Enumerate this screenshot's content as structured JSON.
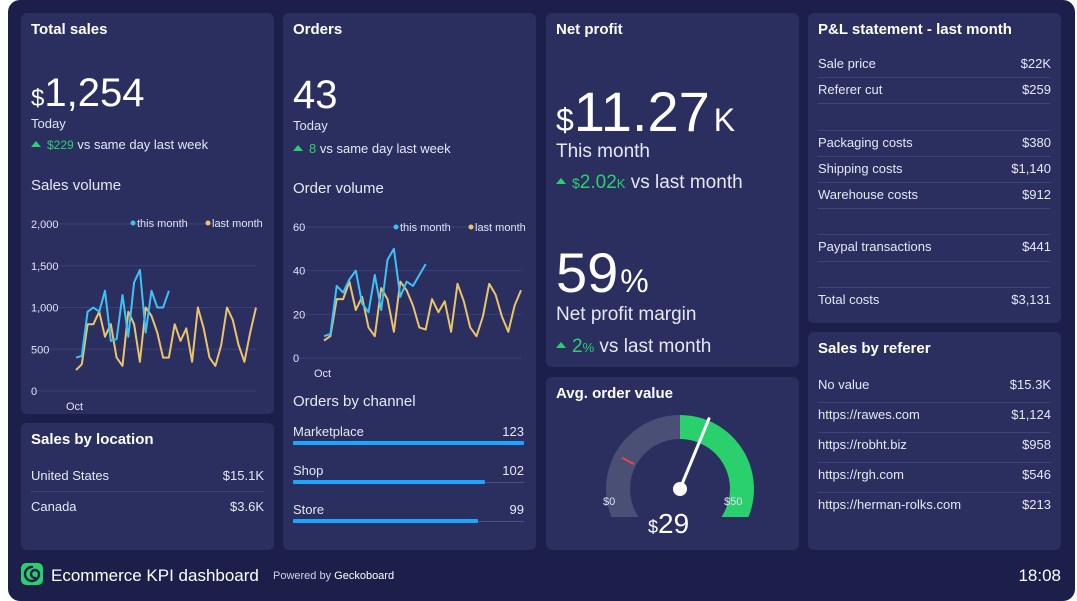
{
  "total_sales": {
    "title": "Total sales",
    "currency": "$",
    "value": "1,254",
    "period": "Today",
    "delta": "$229",
    "delta_text": "vs same day last week",
    "chart_title": "Sales volume"
  },
  "orders": {
    "title": "Orders",
    "value": "43",
    "period": "Today",
    "delta": "8",
    "delta_text": "vs same day last week",
    "chart_title": "Order volume",
    "channel_title": "Orders by channel",
    "channels": [
      {
        "label": "Marketplace",
        "value": "123",
        "fraction": 1.0
      },
      {
        "label": "Shop",
        "value": "102",
        "fraction": 0.83
      },
      {
        "label": "Store",
        "value": "99",
        "fraction": 0.8
      }
    ]
  },
  "net_profit": {
    "title": "Net profit",
    "currency": "$",
    "value": "11.27",
    "suffix": "K",
    "period": "This month",
    "delta_currency": "$",
    "delta": "2.02",
    "delta_suffix": "K",
    "delta_text": "vs last month",
    "margin_value": "59",
    "margin_unit": "%",
    "margin_label": "Net profit margin",
    "margin_delta": "2",
    "margin_delta_unit": "%",
    "margin_delta_text": "vs last month"
  },
  "avg_order": {
    "title": "Avg. order value",
    "currency": "$",
    "value": "29",
    "min_label": "$0",
    "max_label": "$50",
    "gauge_value": 29,
    "gauge_min": 0,
    "gauge_max": 50,
    "gauge_target": 14,
    "green_from": 25
  },
  "pl_statement": {
    "title": "P&L statement - last month",
    "rows": [
      {
        "label": "Sale price",
        "value": "$22K"
      },
      {
        "label": "Referer cut",
        "value": "$259"
      },
      {
        "label": "",
        "value": ""
      },
      {
        "label": "Packaging costs",
        "value": "$380"
      },
      {
        "label": "Shipping costs",
        "value": "$1,140"
      },
      {
        "label": "Warehouse costs",
        "value": "$912"
      },
      {
        "label": "",
        "value": ""
      },
      {
        "label": "Paypal transactions",
        "value": "$441"
      },
      {
        "label": "",
        "value": ""
      },
      {
        "label": "Total costs",
        "value": "$3,131"
      }
    ]
  },
  "sales_by_referer": {
    "title": "Sales by referer",
    "rows": [
      {
        "label": "No value",
        "value": "$15.3K"
      },
      {
        "label": "https://rawes.com",
        "value": "$1,124"
      },
      {
        "label": "https://robht.biz",
        "value": "$958"
      },
      {
        "label": "https://rgh.com",
        "value": "$546"
      },
      {
        "label": "https://herman-rolks.com",
        "value": "$213"
      }
    ]
  },
  "sales_by_location": {
    "title": "Sales by location",
    "rows": [
      {
        "label": "United States",
        "value": "$15.1K"
      },
      {
        "label": "Canada",
        "value": "$3.6K"
      }
    ]
  },
  "footer": {
    "title": "Ecommerce KPI dashboard",
    "powered_prefix": "Powered by",
    "powered_brand": "Geckoboard",
    "time": "18:08"
  },
  "colors": {
    "this_month": "#3ec2f5",
    "last_month": "#e9c46a",
    "bar": "#1aa7ff",
    "positive": "#2ad06b",
    "gauge_red": "#e0464e"
  },
  "chart_data": [
    {
      "type": "line",
      "title": "Sales volume",
      "x_tick_labels": [
        "Oct"
      ],
      "y_ticks": [
        "2,000",
        "1,500",
        "1,000",
        "500",
        "0"
      ],
      "ylim": [
        0,
        2000
      ],
      "legend_placement": "top-right",
      "series": [
        {
          "name": "this month",
          "color": "#3ec2f5",
          "values": [
            400,
            420,
            950,
            1000,
            950,
            1200,
            600,
            620,
            1150,
            650,
            1300,
            1450,
            700,
            1200,
            1000,
            1000,
            1200
          ]
        },
        {
          "name": "last month",
          "color": "#e9c46a",
          "values": [
            250,
            320,
            800,
            800,
            950,
            650,
            800,
            400,
            300,
            950,
            800,
            350,
            1000,
            900,
            700,
            400,
            400,
            800,
            600,
            750,
            350,
            1000,
            750,
            400,
            300,
            550,
            1000,
            850,
            550,
            350,
            700,
            1000
          ]
        }
      ]
    },
    {
      "type": "line",
      "title": "Order volume",
      "x_tick_labels": [
        "Oct"
      ],
      "y_ticks": [
        "60",
        "40",
        "20",
        "0"
      ],
      "ylim": [
        0,
        60
      ],
      "legend_placement": "top-right",
      "series": [
        {
          "name": "this month",
          "color": "#3ec2f5",
          "values": [
            10,
            11,
            33,
            30,
            36,
            40,
            25,
            21,
            38,
            22,
            45,
            50,
            28,
            35,
            33,
            38,
            43
          ]
        },
        {
          "name": "last month",
          "color": "#e9c46a",
          "values": [
            8,
            10,
            27,
            27,
            35,
            22,
            28,
            14,
            10,
            32,
            27,
            12,
            35,
            31,
            24,
            14,
            13,
            27,
            21,
            26,
            12,
            34,
            26,
            14,
            10,
            19,
            34,
            29,
            19,
            12,
            24,
            31
          ]
        }
      ]
    }
  ]
}
